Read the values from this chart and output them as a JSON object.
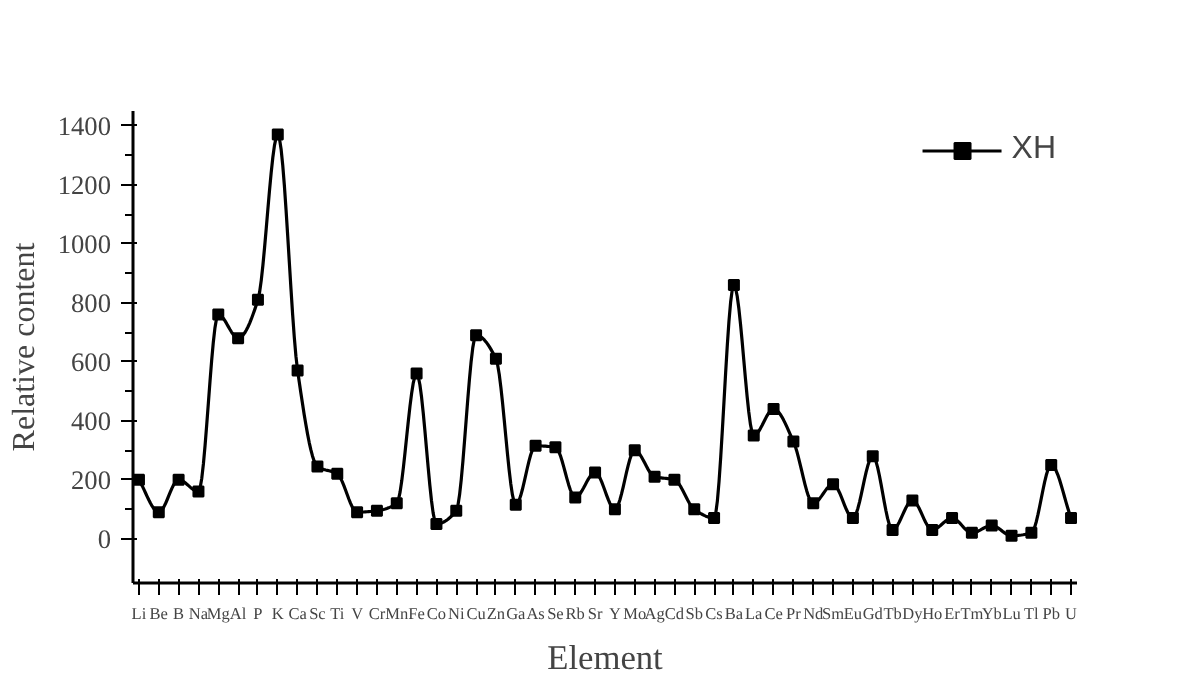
{
  "chart_data": {
    "type": "line",
    "xlabel": "Element",
    "ylabel": "Relative content",
    "categories": [
      "Li",
      "Be",
      "B",
      "Na",
      "Mg",
      "Al",
      "P",
      "K",
      "Ca",
      "Sc",
      "Ti",
      "V",
      "Cr",
      "Mn",
      "Fe",
      "Co",
      "Ni",
      "Cu",
      "Zn",
      "Ga",
      "As",
      "Se",
      "Rb",
      "Sr",
      "Y",
      "Mo",
      "Ag",
      "Cd",
      "Sb",
      "Cs",
      "Ba",
      "La",
      "Ce",
      "Pr",
      "Nd",
      "Sm",
      "Eu",
      "Gd",
      "Tb",
      "Dy",
      "Ho",
      "Er",
      "Tm",
      "Yb",
      "Lu",
      "Tl",
      "Pb",
      "U"
    ],
    "series": [
      {
        "name": "XH",
        "color": "#000000",
        "values": [
          200,
          90,
          200,
          160,
          760,
          680,
          810,
          1370,
          570,
          245,
          220,
          90,
          95,
          120,
          560,
          50,
          95,
          690,
          610,
          115,
          315,
          310,
          140,
          225,
          100,
          300,
          210,
          200,
          100,
          70,
          860,
          350,
          440,
          330,
          120,
          185,
          70,
          280,
          30,
          130,
          30,
          70,
          20,
          45,
          10,
          20,
          250,
          70
        ]
      }
    ],
    "ylim": [
      -150,
      1450
    ],
    "yticks": [
      0,
      200,
      400,
      600,
      800,
      1000,
      1200,
      1400
    ],
    "grid": false,
    "legend": "top right",
    "marker": "square",
    "line_style": "solid"
  }
}
